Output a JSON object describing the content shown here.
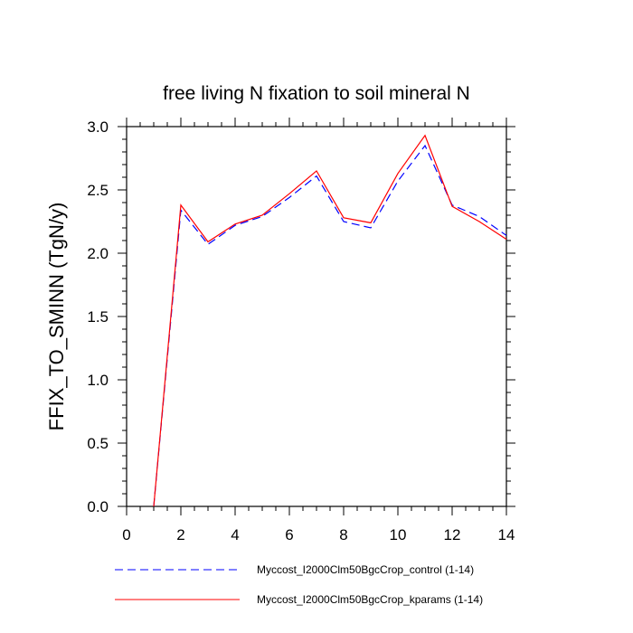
{
  "chart_data": {
    "type": "line",
    "title": "free living N fixation to soil mineral N",
    "ylabel": "FFIX_TO_SMINN  (TgN/y)",
    "xlabel": "",
    "xlim": [
      0,
      14
    ],
    "ylim": [
      0,
      3
    ],
    "xticks": [
      0,
      2,
      4,
      6,
      8,
      10,
      12,
      14
    ],
    "yticks": [
      0.0,
      0.5,
      1.0,
      1.5,
      2.0,
      2.5,
      3.0
    ],
    "xtick_labels": [
      "0",
      "2",
      "4",
      "6",
      "8",
      "10",
      "12",
      "14"
    ],
    "ytick_labels": [
      "0.0",
      "0.5",
      "1.0",
      "1.5",
      "2.0",
      "2.5",
      "3.0"
    ],
    "grid": false,
    "legend_position": "bottom",
    "series": [
      {
        "name": "Myccost_I2000Clm50BgcCrop_control (1-14)",
        "color": "#0000ff",
        "style": "dashed",
        "x": [
          1,
          2,
          3,
          4,
          5,
          6,
          7,
          8,
          9,
          10,
          11,
          12,
          13,
          14
        ],
        "values": [
          0.0,
          2.34,
          2.07,
          2.22,
          2.29,
          2.44,
          2.61,
          2.25,
          2.2,
          2.57,
          2.85,
          2.38,
          2.29,
          2.14
        ]
      },
      {
        "name": "Myccost_I2000Clm50BgcCrop_kparams (1-14)",
        "color": "#ff0000",
        "style": "solid",
        "x": [
          1,
          2,
          3,
          4,
          5,
          6,
          7,
          8,
          9,
          10,
          11,
          12,
          13,
          14
        ],
        "values": [
          0.0,
          2.38,
          2.09,
          2.23,
          2.3,
          2.47,
          2.65,
          2.28,
          2.24,
          2.63,
          2.93,
          2.37,
          2.25,
          2.11
        ]
      }
    ]
  }
}
